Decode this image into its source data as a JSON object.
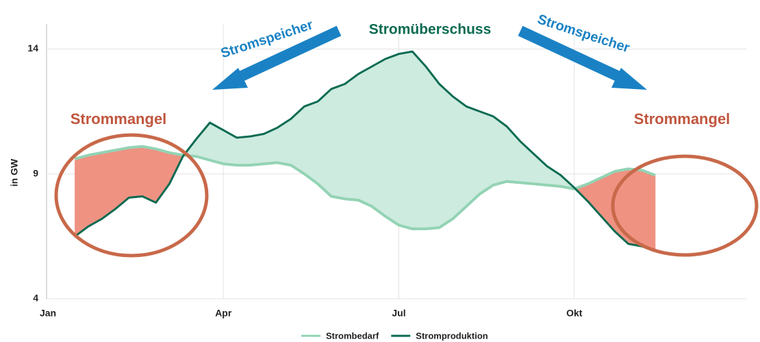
{
  "chart_data": {
    "type": "line",
    "title": "Stromüberschuss",
    "y_label": "in GW",
    "annotations": {
      "storage": "Stromspeicher",
      "shortage": "Strommangel"
    },
    "categories": [
      "Jan",
      null,
      null,
      null,
      null,
      null,
      null,
      null,
      null,
      null,
      null,
      null,
      null,
      "Apr",
      null,
      null,
      null,
      null,
      null,
      null,
      null,
      null,
      null,
      null,
      null,
      null,
      "Jul",
      null,
      null,
      null,
      null,
      null,
      null,
      null,
      null,
      null,
      null,
      null,
      null,
      "Okt",
      null,
      null,
      null,
      null,
      null,
      null,
      null,
      null,
      null,
      null,
      null,
      null
    ],
    "series": [
      {
        "name": "Strombedarf",
        "color": "#93d3b4",
        "values": [
          null,
          null,
          9.6,
          9.75,
          9.85,
          9.95,
          10.05,
          10.1,
          10.0,
          9.85,
          9.75,
          9.7,
          9.55,
          9.4,
          9.35,
          9.35,
          9.4,
          9.45,
          9.35,
          9.0,
          8.6,
          8.1,
          8.0,
          7.95,
          7.7,
          7.3,
          6.95,
          6.8,
          6.8,
          6.85,
          7.2,
          7.7,
          8.2,
          8.55,
          8.7,
          8.65,
          8.6,
          8.55,
          8.5,
          8.4,
          8.6,
          8.85,
          9.1,
          9.2,
          9.15,
          8.95,
          null,
          null,
          null,
          null,
          null,
          null
        ]
      },
      {
        "name": "Stromproduktion",
        "color": "#0b6b52",
        "values": [
          null,
          null,
          6.5,
          6.9,
          7.2,
          7.6,
          8.05,
          8.1,
          7.85,
          8.6,
          9.7,
          10.4,
          11.05,
          10.75,
          10.45,
          10.5,
          10.6,
          10.85,
          11.2,
          11.7,
          11.9,
          12.4,
          12.6,
          13.0,
          13.3,
          13.6,
          13.8,
          13.9,
          13.3,
          12.6,
          12.1,
          11.7,
          11.5,
          11.3,
          10.9,
          10.3,
          9.8,
          9.3,
          8.95,
          8.45,
          7.9,
          7.3,
          6.7,
          6.2,
          6.1,
          5.9,
          null,
          null,
          null,
          null,
          null,
          null
        ]
      }
    ],
    "surplus_color": "#cdebdf",
    "shortage_color": "#ef9282",
    "ylim": [
      4,
      15
    ],
    "yticks": [
      4,
      9,
      14
    ],
    "grid": true
  }
}
